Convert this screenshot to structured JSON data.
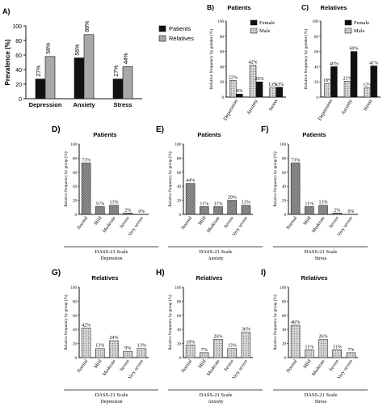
{
  "colors": {
    "patients": "#111111",
    "relatives": "#a8a8a8",
    "female": "#111111",
    "male_fill": "#b8b8b8",
    "bar_patterned": "#8a8a8a",
    "bar_plain": "#c8c8c8"
  },
  "chart_data": [
    {
      "panel": "A)",
      "type": "bar",
      "title": "",
      "ylabel": "Prevalence (%)",
      "xlabel": "",
      "ylim": [
        0,
        100
      ],
      "yticks": [
        "0",
        "20",
        "40",
        "60",
        "80",
        "100"
      ],
      "categories": [
        "Depression",
        "Anxiety",
        "Stress"
      ],
      "series": [
        {
          "name": "Patients",
          "color": "#111111",
          "values": [
            27,
            56,
            27
          ],
          "labels": [
            "27%",
            "56%",
            "27%"
          ]
        },
        {
          "name": "Relatives",
          "color": "#a8a8a8",
          "values": [
            58,
            88,
            44
          ],
          "labels": [
            "58%",
            "88%",
            "44%"
          ]
        }
      ],
      "legend": "right"
    },
    {
      "panel": "B)",
      "type": "bar",
      "title": "Patients",
      "ylabel": "Relative frequency by gender (%)",
      "ylim": [
        0,
        100
      ],
      "yticks": [
        "0",
        "20",
        "40",
        "60",
        "80",
        "100"
      ],
      "categories": [
        "Depression",
        "Anxiety",
        "Stress"
      ],
      "series": [
        {
          "name": "Female",
          "color": "#111111",
          "values": [
            4,
            20,
            13
          ],
          "labels": [
            "4%",
            "20%",
            "13%"
          ]
        },
        {
          "name": "Male",
          "color": "#b8b8b8",
          "values": [
            22,
            42,
            13
          ],
          "labels": [
            "22%",
            "42%",
            "13%"
          ]
        }
      ],
      "legend": "top-right"
    },
    {
      "panel": "C)",
      "type": "bar",
      "title": "Relatives",
      "ylabel": "Relative frequency by gender (%)",
      "ylim": [
        0,
        100
      ],
      "yticks": [
        "0",
        "20",
        "40",
        "60",
        "80",
        "100"
      ],
      "categories": [
        "Depression",
        "Anxiety",
        "Stress"
      ],
      "series": [
        {
          "name": "Female",
          "color": "#111111",
          "values": [
            40,
            60,
            41
          ],
          "labels": [
            "40%",
            "60%",
            "41%"
          ]
        },
        {
          "name": "Male",
          "color": "#b8b8b8",
          "values": [
            18,
            21,
            12
          ],
          "labels": [
            "18%",
            "21%",
            "12%"
          ]
        }
      ],
      "legend": "top-right"
    },
    {
      "panel": "D)",
      "type": "bar",
      "title": "Patients",
      "ylabel": "Relative frequency by group (%)",
      "xlabel": "DASS-21 Scale",
      "subtitle": "Depression",
      "ylim": [
        0,
        100
      ],
      "yticks": [
        "0",
        "20",
        "40",
        "60",
        "80",
        "100"
      ],
      "categories": [
        "Normal",
        "Mild",
        "Moderate",
        "Severe",
        "Very severe"
      ],
      "values": [
        73,
        11,
        13,
        2,
        0
      ],
      "labels": [
        "73%",
        "11%",
        "13%",
        "2%",
        "0%"
      ]
    },
    {
      "panel": "E)",
      "type": "bar",
      "title": "Patients",
      "ylabel": "Relative frequency by group (%)",
      "xlabel": "DASS-21 Scale",
      "subtitle": "Anxiety",
      "ylim": [
        0,
        100
      ],
      "yticks": [
        "0",
        "20",
        "40",
        "60",
        "80",
        "100"
      ],
      "categories": [
        "Normal",
        "Mild",
        "Moderate",
        "Severe",
        "Very severe"
      ],
      "values": [
        44,
        11,
        11,
        20,
        13
      ],
      "labels": [
        "44%",
        "11%",
        "11%",
        "20%",
        "13%"
      ]
    },
    {
      "panel": "F)",
      "type": "bar",
      "title": "Patients",
      "ylabel": "Relative frequency by group (%)",
      "xlabel": "DASS-21 Scale",
      "subtitle": "Stress",
      "ylim": [
        0,
        100
      ],
      "yticks": [
        "0",
        "20",
        "40",
        "60",
        "80",
        "100"
      ],
      "categories": [
        "Normal",
        "Mild",
        "Moderate",
        "Severe",
        "Very severe"
      ],
      "values": [
        73,
        11,
        13,
        2,
        0
      ],
      "labels": [
        "73%",
        "11%",
        "13%",
        "2%",
        "0%"
      ]
    },
    {
      "panel": "G)",
      "type": "bar",
      "title": "Relatives",
      "ylabel": "Relative frequency by group (%)",
      "xlabel": "DASS-21 Scale",
      "subtitle": "Depression",
      "ylim": [
        0,
        100
      ],
      "yticks": [
        "0",
        "20",
        "40",
        "60",
        "80",
        "100"
      ],
      "categories": [
        "Normal",
        "Mild",
        "Moderate",
        "Severe",
        "Very severe"
      ],
      "values": [
        42,
        13,
        24,
        9,
        13
      ],
      "labels": [
        "42%",
        "13%",
        "24%",
        "9%",
        "13%"
      ]
    },
    {
      "panel": "H)",
      "type": "bar",
      "title": "Relatives",
      "ylabel": "Relative frequency by group (%)",
      "xlabel": "DASS-21 Scale",
      "subtitle": "Anxiety",
      "ylim": [
        0,
        100
      ],
      "yticks": [
        "0",
        "20",
        "40",
        "60",
        "80",
        "100"
      ],
      "categories": [
        "Normal",
        "Mild",
        "Moderate",
        "Severe",
        "Very severe"
      ],
      "values": [
        18,
        7,
        26,
        13,
        36
      ],
      "labels": [
        "18%",
        "7%",
        "26%",
        "13%",
        "36%"
      ]
    },
    {
      "panel": "I)",
      "type": "bar",
      "title": "Relatives",
      "ylabel": "Relative frequency by group (%)",
      "xlabel": "DASS-21 Scale",
      "subtitle": "Stress",
      "ylim": [
        0,
        100
      ],
      "yticks": [
        "0",
        "20",
        "40",
        "60",
        "80",
        "100"
      ],
      "categories": [
        "Normal",
        "Mild",
        "Moderate",
        "Severe",
        "Very severe"
      ],
      "values": [
        46,
        11,
        26,
        11,
        7
      ],
      "labels": [
        "46%",
        "11%",
        "26%",
        "11%",
        "7%"
      ]
    }
  ]
}
